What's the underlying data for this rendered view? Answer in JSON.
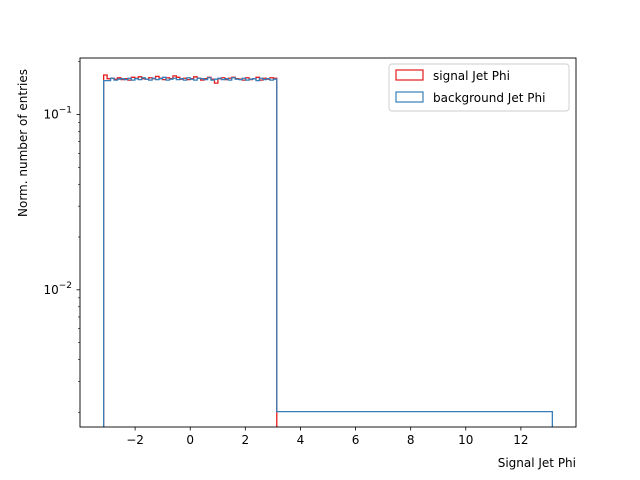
{
  "chart_data": {
    "type": "histogram",
    "xlabel": "Signal Jet Phi",
    "ylabel": "Norm. number of entries",
    "xlim": [
      -4.0,
      14.0
    ],
    "ylim": [
      0.00165,
      0.21
    ],
    "yscale": "log",
    "xticks": [
      -2,
      0,
      2,
      4,
      6,
      8,
      10,
      12
    ],
    "xtick_labels": [
      "−2",
      "0",
      "2",
      "4",
      "6",
      "8",
      "10",
      "12"
    ],
    "yticks": [
      {
        "value": 0.01,
        "base": "10",
        "exp": "−2"
      },
      {
        "value": 0.1,
        "base": "10",
        "exp": "−1"
      }
    ],
    "legend_position": "upper right",
    "series": [
      {
        "name": "signal Jet Phi",
        "color": "#e41a1c",
        "style": "step",
        "bin_edges": [
          -3.14159,
          -3.01593,
          -2.89027,
          -2.7646,
          -2.63894,
          -2.51327,
          -2.38761,
          -2.26195,
          -2.13628,
          -2.01062,
          -1.88496,
          -1.75929,
          -1.63363,
          -1.50796,
          -1.3823,
          -1.25664,
          -1.13097,
          -1.00531,
          -0.87965,
          -0.75398,
          -0.62832,
          -0.50265,
          -0.37699,
          -0.25133,
          -0.12566,
          0.0,
          0.12566,
          0.25133,
          0.37699,
          0.50265,
          0.62832,
          0.75398,
          0.87965,
          1.00531,
          1.13097,
          1.25664,
          1.3823,
          1.50796,
          1.63363,
          1.75929,
          1.88496,
          2.01062,
          2.13628,
          2.26195,
          2.38761,
          2.51327,
          2.63894,
          2.7646,
          2.89027,
          3.01593,
          3.14159
        ],
        "values": [
          0.168,
          0.16,
          0.161,
          0.159,
          0.162,
          0.158,
          0.16,
          0.157,
          0.163,
          0.161,
          0.164,
          0.16,
          0.159,
          0.162,
          0.16,
          0.165,
          0.161,
          0.158,
          0.162,
          0.16,
          0.166,
          0.163,
          0.159,
          0.161,
          0.158,
          0.16,
          0.164,
          0.161,
          0.157,
          0.16,
          0.163,
          0.159,
          0.151,
          0.16,
          0.162,
          0.158,
          0.161,
          0.163,
          0.16,
          0.159,
          0.157,
          0.162,
          0.158,
          0.16,
          0.163,
          0.157,
          0.161,
          0.159,
          0.162,
          0.161
        ]
      },
      {
        "name": "background Jet Phi",
        "color": "#377eb8",
        "style": "step",
        "bin_edges": [
          -3.14159,
          -3.01593,
          -2.89027,
          -2.7646,
          -2.63894,
          -2.51327,
          -2.38761,
          -2.26195,
          -2.13628,
          -2.01062,
          -1.88496,
          -1.75929,
          -1.63363,
          -1.50796,
          -1.3823,
          -1.25664,
          -1.13097,
          -1.00531,
          -0.87965,
          -0.75398,
          -0.62832,
          -0.50265,
          -0.37699,
          -0.25133,
          -0.12566,
          0.0,
          0.12566,
          0.25133,
          0.37699,
          0.50265,
          0.62832,
          0.75398,
          0.87965,
          1.00531,
          1.13097,
          1.25664,
          1.3823,
          1.50796,
          1.63363,
          1.75929,
          1.88496,
          2.01062,
          2.13628,
          2.26195,
          2.38761,
          2.51327,
          2.63894,
          2.7646,
          2.89027,
          3.01593,
          3.14159,
          13.14159
        ],
        "values": [
          0.156,
          0.156,
          0.161,
          0.157,
          0.159,
          0.16,
          0.158,
          0.161,
          0.157,
          0.16,
          0.158,
          0.162,
          0.159,
          0.157,
          0.161,
          0.158,
          0.16,
          0.163,
          0.157,
          0.159,
          0.161,
          0.158,
          0.16,
          0.157,
          0.162,
          0.159,
          0.157,
          0.161,
          0.16,
          0.158,
          0.162,
          0.157,
          0.159,
          0.161,
          0.158,
          0.16,
          0.157,
          0.162,
          0.159,
          0.158,
          0.161,
          0.157,
          0.159,
          0.16,
          0.156,
          0.161,
          0.158,
          0.16,
          0.157,
          0.159,
          0.00202
        ]
      }
    ]
  }
}
